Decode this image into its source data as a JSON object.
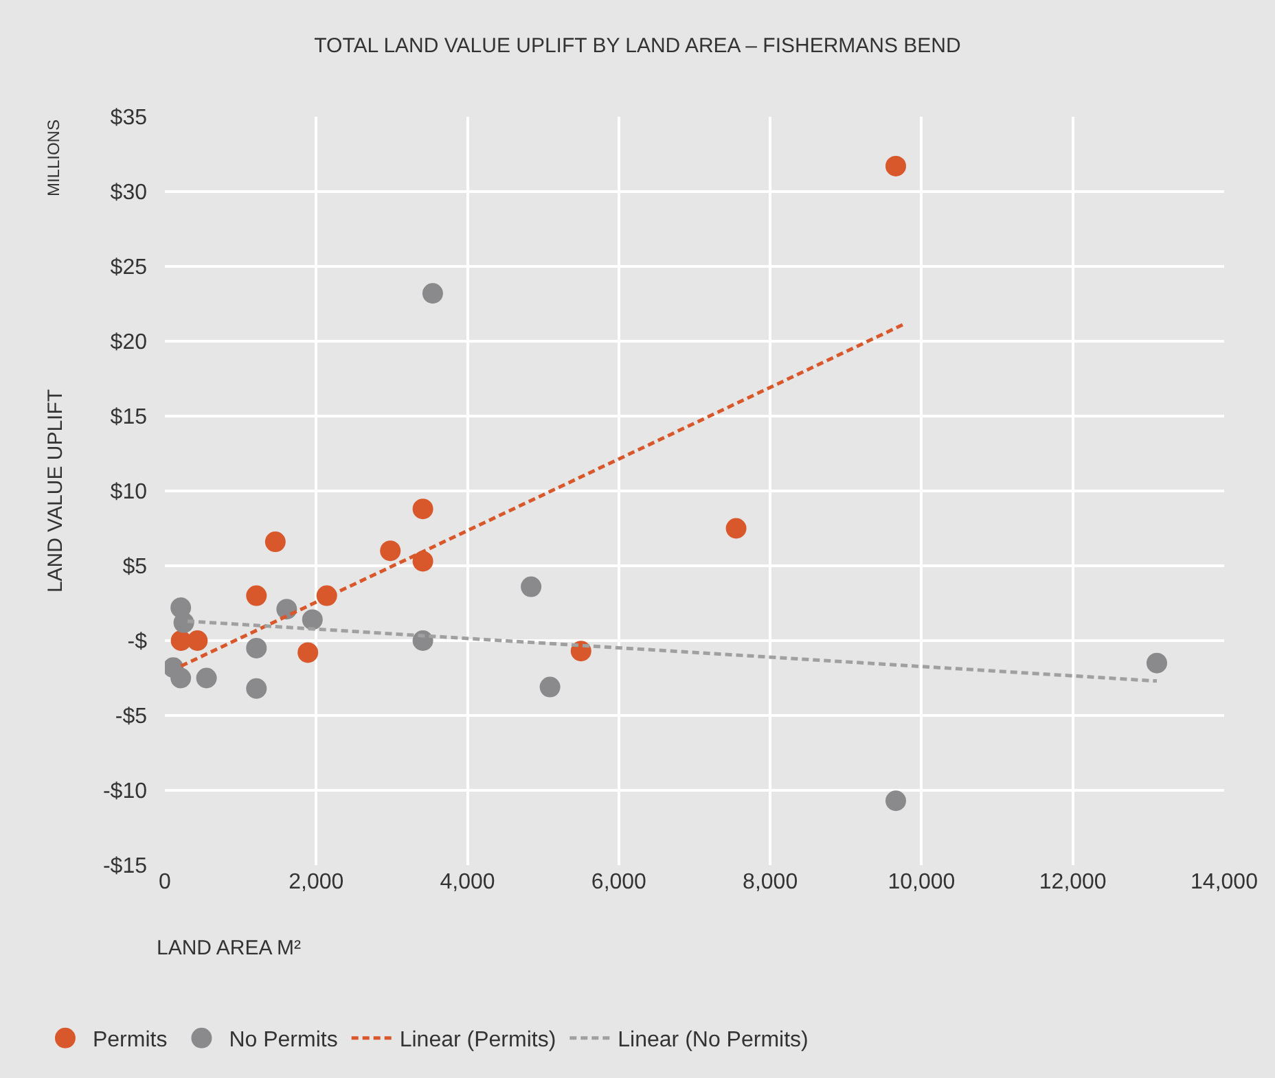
{
  "chart_data": {
    "type": "scatter",
    "title": "TOTAL LAND VALUE UPLIFT BY LAND AREA – FISHERMANS BEND",
    "xlabel": "LAND AREA M²",
    "ylabel": "LAND VALUE UPLIFT",
    "annotations": [
      "MILLIONS"
    ],
    "xlim": [
      0,
      14000
    ],
    "xticks": [
      0,
      {
        "value": 2000,
        "label": "2,000"
      },
      {
        "value": 4000,
        "label": "4,000"
      },
      {
        "value": 6000,
        "label": "6,000"
      },
      {
        "value": 8000,
        "label": "8,000"
      },
      {
        "value": 10000,
        "label": "10,000"
      },
      {
        "value": 12000,
        "label": "12,000"
      },
      {
        "value": 14000,
        "label": "14,000"
      }
    ],
    "ylim": [
      -15,
      35
    ],
    "yticks": [
      {
        "value": -15,
        "label": "-$15"
      },
      {
        "value": -10,
        "label": "-$10"
      },
      {
        "value": -5,
        "label": "-$5"
      },
      {
        "value": 0,
        "label": "-$"
      },
      {
        "value": 5,
        "label": "$5"
      },
      {
        "value": 10,
        "label": "$10"
      },
      {
        "value": 15,
        "label": "$15"
      },
      {
        "value": 20,
        "label": "$20"
      },
      {
        "value": 25,
        "label": "$25"
      },
      {
        "value": 30,
        "label": "$30"
      },
      {
        "value": 35,
        "label": "$35"
      }
    ],
    "grid": true,
    "legend": "bottom",
    "marker": "circle",
    "series": [
      {
        "name": "Permits",
        "color": "#d9582b",
        "x": [
          214,
          430,
          1210,
          1460,
          1890,
          2140,
          2980,
          3410,
          3410,
          5500,
          7550,
          9660
        ],
        "values": [
          0,
          0,
          3.0,
          6.6,
          -0.8,
          3.0,
          6.0,
          8.8,
          5.3,
          -0.7,
          7.5,
          31.7
        ]
      },
      {
        "name": "No Permits",
        "color": "#8a8a8c",
        "x": [
          110,
          210,
          250,
          210,
          550,
          1210,
          1210,
          1610,
          1950,
          3410,
          3540,
          4840,
          5090,
          9660,
          13110
        ],
        "values": [
          -1.8,
          2.2,
          1.2,
          -2.5,
          -2.5,
          -0.5,
          -3.2,
          2.1,
          1.4,
          0,
          23.2,
          3.6,
          -3.1,
          -10.7,
          -1.5
        ]
      },
      {
        "name": "Linear (Permits)",
        "type": "line",
        "color": "#d9582b",
        "marker": "none",
        "line_style": "dashed",
        "x": [
          214,
          9750
        ],
        "values": [
          -1.7,
          21.1
        ]
      },
      {
        "name": "Linear (No Permits)",
        "type": "line",
        "color": "#a0a0a0",
        "marker": "none",
        "line_style": "dashed",
        "x": [
          300,
          13110
        ],
        "values": [
          1.3,
          -2.7
        ]
      }
    ]
  }
}
